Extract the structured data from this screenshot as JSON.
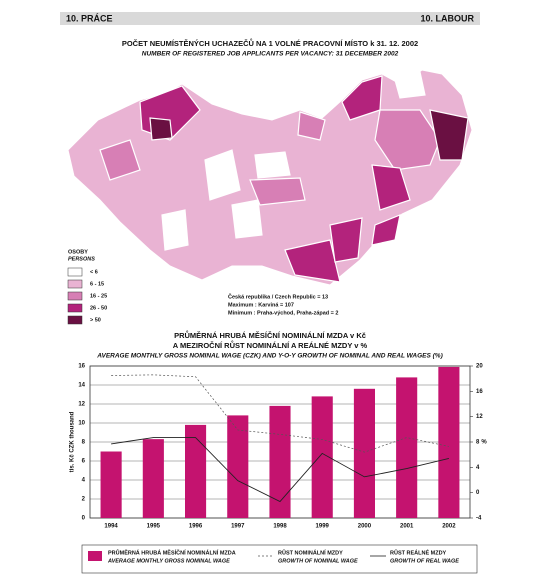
{
  "header": {
    "left": "10. PRÁCE",
    "right": "10. LABOUR"
  },
  "map": {
    "title": "POČET NEUMÍSTĚNÝCH UCHAZEČŮ NA 1 VOLNÉ PRACOVNÍ MÍSTO k 31. 12. 2002",
    "subtitle": "NUMBER OF REGISTERED JOB APPLICANTS PER VACANCY: 31 DECEMBER 2002",
    "legend": {
      "title": "OSOBY",
      "subtitle": "PERSONS",
      "items": [
        {
          "label": "< 6",
          "color": "#ffffff"
        },
        {
          "label": "6 - 15",
          "color": "#e9b3d3"
        },
        {
          "label": "16 - 25",
          "color": "#d77fb5"
        },
        {
          "label": "26 - 50",
          "color": "#b3237c"
        },
        {
          "label": "> 50",
          "color": "#6a1042"
        }
      ]
    },
    "notes": [
      "Česká republika / Czech Republic = 13",
      "Maximum : Karviná = 107",
      "Minimum : Praha-východ, Praha-západ = 2"
    ]
  },
  "chart_data": {
    "type": "bar-line",
    "title": "PRŮMĚRNÁ HRUBÁ MĚSÍČNÍ NOMINÁLNÍ MZDA v Kč",
    "subtitle": "A MEZIROČNÍ RŮST NOMINÁLNÍ A REÁLNÉ MZDY v %",
    "subtitle_en": "AVERAGE MONTHLY GROSS NOMINAL WAGE (CZK) AND Y-O-Y GROWTH OF NOMINAL AND REAL WAGES (%)",
    "y_label": "tis. Kč    CZK thousand",
    "y2_label": "%",
    "categories": [
      "1994",
      "1995",
      "1996",
      "1997",
      "1998",
      "1999",
      "2000",
      "2001",
      "2002"
    ],
    "ylim": [
      0,
      16
    ],
    "yticks": [
      0,
      2,
      4,
      6,
      8,
      10,
      12,
      14,
      16
    ],
    "y2lim": [
      -4,
      20
    ],
    "y2ticks": [
      -4,
      0,
      4,
      8,
      12,
      16,
      20
    ],
    "grid": true,
    "series": [
      {
        "name": "PRŮMĚRNÁ HRUBÁ MĚSÍČNÍ NOMINÁLNÍ MZDA",
        "name_en": "AVERAGE MONTHLY GROSS NOMINAL WAGE",
        "type": "bar",
        "color": "#c4136f",
        "values": [
          7.0,
          8.3,
          9.8,
          10.8,
          11.8,
          12.8,
          13.6,
          14.8,
          15.9
        ]
      },
      {
        "name": "RŮST NOMINÁLNÍ MZDY",
        "name_en": "GROWTH OF NOMINAL WAGE",
        "type": "line",
        "dash": true,
        "axis": "y2",
        "color": "#555555",
        "values": [
          18.5,
          18.6,
          18.3,
          9.9,
          9.2,
          8.4,
          6.4,
          8.7,
          7.3
        ]
      },
      {
        "name": "RŮST REÁLNÉ MZDY",
        "name_en": "GROWTH OF REAL WAGE",
        "type": "line",
        "dash": false,
        "axis": "y2",
        "color": "#222222",
        "values": [
          7.7,
          8.7,
          8.7,
          1.9,
          -1.4,
          6.2,
          2.5,
          3.8,
          5.4
        ]
      }
    ]
  }
}
